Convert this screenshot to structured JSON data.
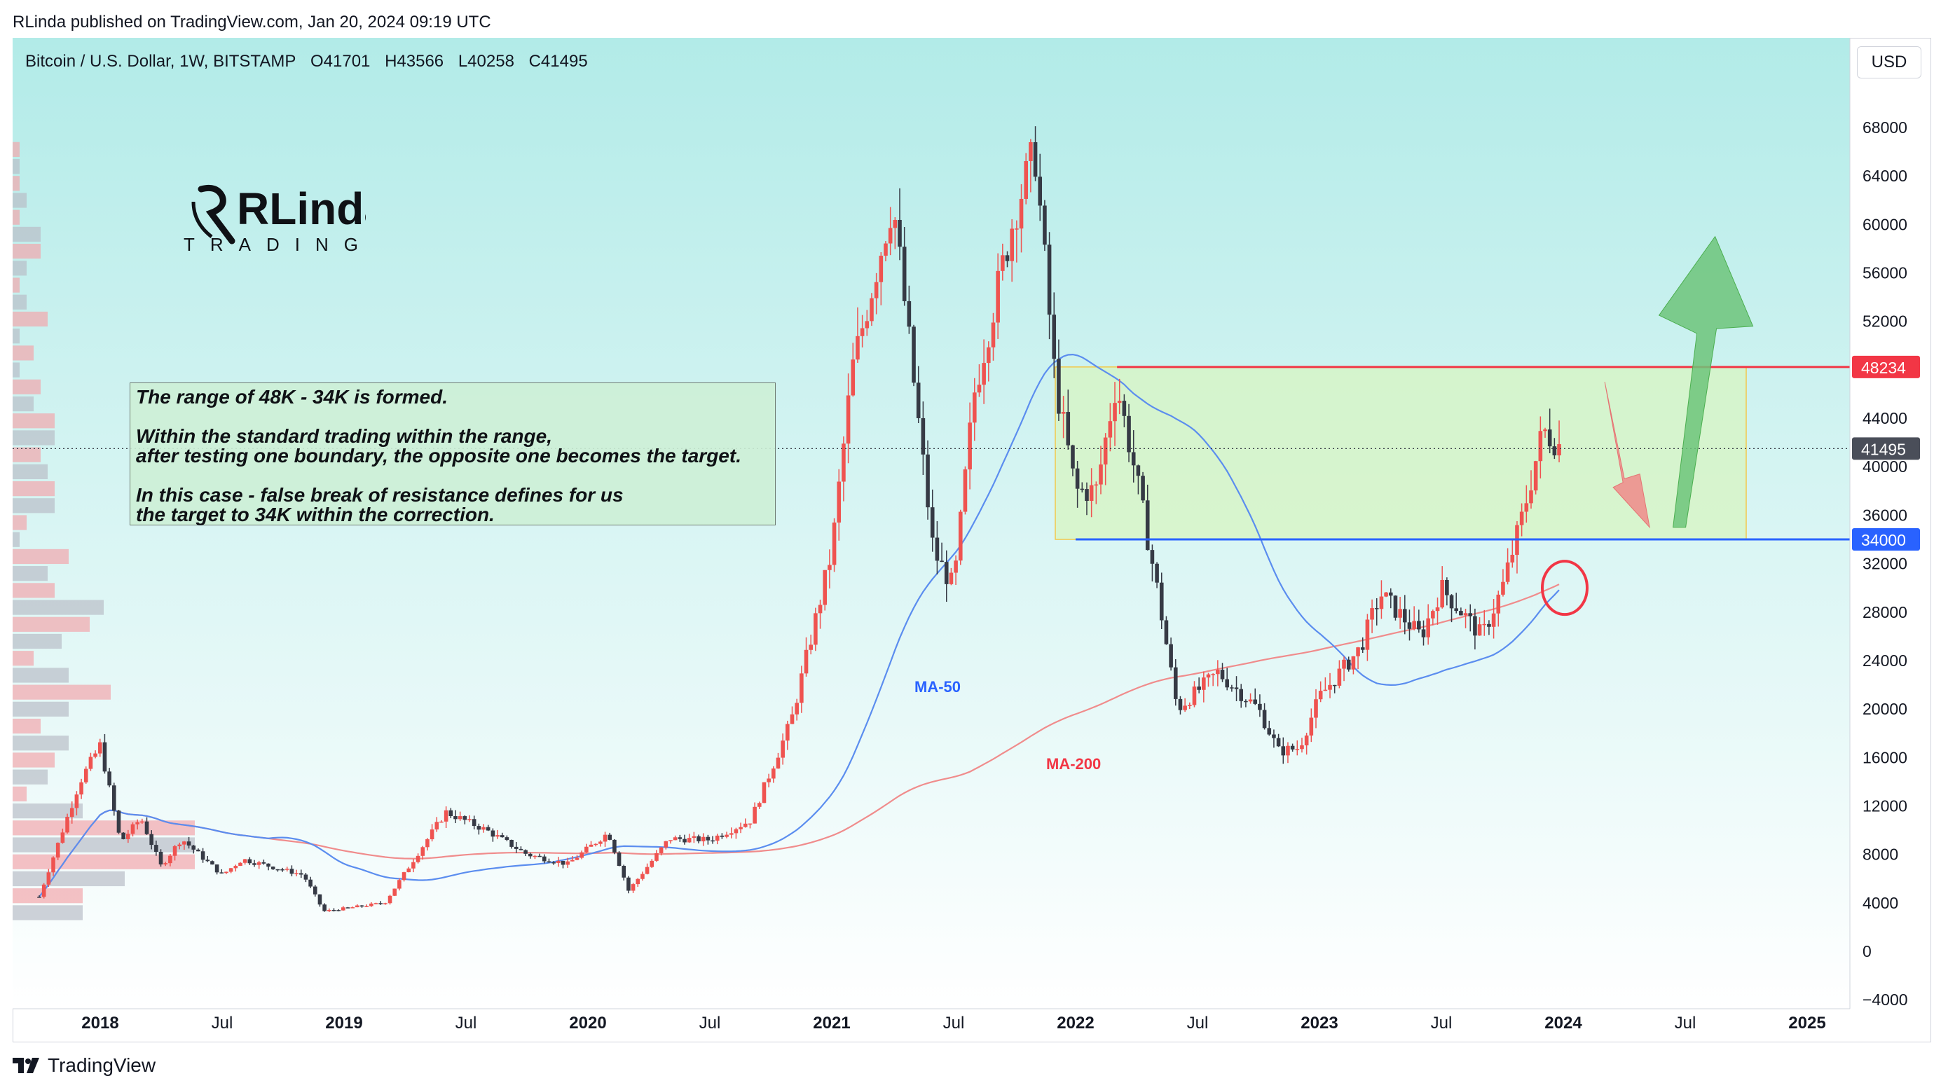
{
  "header": {
    "published_by": "RLinda published on TradingView.com, Jan 20, 2024 09:19 UTC"
  },
  "legend": {
    "symbol": "Bitcoin / U.S. Dollar, 1W, BITSTAMP",
    "open": "O41701",
    "high": "H43566",
    "low": "L40258",
    "close": "C41495"
  },
  "currency_button": "USD",
  "watermark": {
    "text_main": "RLinda",
    "text_sub": "TRADING"
  },
  "note": {
    "line1": "The range of 48K - 34K is formed.",
    "line2": "Within the standard trading within the range,",
    "line3": "after testing one boundary, the opposite one becomes the target.",
    "line4": "In this case - false break of resistance defines for us",
    "line5": "the target to 34K within the correction."
  },
  "footer": {
    "brand": "TradingView"
  },
  "colors": {
    "up": "#ef5350",
    "down": "#363a45",
    "ma50": "#5b8def",
    "ma200": "#f08c8c",
    "resistance": "#f23645",
    "support": "#2962ff",
    "range_fill": "#d7f4c2",
    "bg_top": "#b2ebe8"
  },
  "chart_data": {
    "type": "candlestick",
    "title": "Bitcoin / U.S. Dollar, 1W, BITSTAMP",
    "ylim": [
      -4000,
      72000
    ],
    "y_ticks": [
      -4000,
      0,
      4000,
      8000,
      12000,
      16000,
      20000,
      24000,
      28000,
      32000,
      36000,
      40000,
      44000,
      48000,
      52000,
      56000,
      60000,
      64000,
      68000
    ],
    "x_ticks": [
      "2018",
      "Jul",
      "2019",
      "Jul",
      "2020",
      "Jul",
      "2021",
      "Jul",
      "2022",
      "Jul",
      "2023",
      "Jul",
      "2024",
      "Jul",
      "2025"
    ],
    "anchors": [
      {
        "date": "2017-10",
        "price": 4500
      },
      {
        "date": "2017-12",
        "price": 14000
      },
      {
        "date": "2018-01",
        "price": 17000
      },
      {
        "date": "2018-02",
        "price": 9000
      },
      {
        "date": "2018-03",
        "price": 11000
      },
      {
        "date": "2018-04",
        "price": 7000
      },
      {
        "date": "2018-05",
        "price": 9300
      },
      {
        "date": "2018-07",
        "price": 6300
      },
      {
        "date": "2018-08",
        "price": 7600
      },
      {
        "date": "2018-11",
        "price": 6300
      },
      {
        "date": "2018-12",
        "price": 3300
      },
      {
        "date": "2019-03",
        "price": 4000
      },
      {
        "date": "2019-06",
        "price": 11500
      },
      {
        "date": "2019-08",
        "price": 10000
      },
      {
        "date": "2019-10",
        "price": 8000
      },
      {
        "date": "2019-12",
        "price": 7200
      },
      {
        "date": "2020-02",
        "price": 9800
      },
      {
        "date": "2020-03",
        "price": 5000
      },
      {
        "date": "2020-05",
        "price": 9300
      },
      {
        "date": "2020-07",
        "price": 9200
      },
      {
        "date": "2020-09",
        "price": 10800
      },
      {
        "date": "2020-11",
        "price": 19000
      },
      {
        "date": "2021-01",
        "price": 33000
      },
      {
        "date": "2021-02",
        "price": 48000
      },
      {
        "date": "2021-04",
        "price": 62000
      },
      {
        "date": "2021-06",
        "price": 33000
      },
      {
        "date": "2021-07",
        "price": 30000
      },
      {
        "date": "2021-08",
        "price": 46000
      },
      {
        "date": "2021-10",
        "price": 61000
      },
      {
        "date": "2021-11",
        "price": 66000
      },
      {
        "date": "2021-12",
        "price": 47000
      },
      {
        "date": "2022-01",
        "price": 38000
      },
      {
        "date": "2022-02",
        "price": 38000
      },
      {
        "date": "2022-03",
        "price": 47000
      },
      {
        "date": "2022-04",
        "price": 39000
      },
      {
        "date": "2022-05",
        "price": 30000
      },
      {
        "date": "2022-06",
        "price": 20000
      },
      {
        "date": "2022-08",
        "price": 23000
      },
      {
        "date": "2022-10",
        "price": 20000
      },
      {
        "date": "2022-11",
        "price": 16500
      },
      {
        "date": "2022-12",
        "price": 16800
      },
      {
        "date": "2023-01",
        "price": 21000
      },
      {
        "date": "2023-03",
        "price": 25000
      },
      {
        "date": "2023-04",
        "price": 29500
      },
      {
        "date": "2023-06",
        "price": 26000
      },
      {
        "date": "2023-07",
        "price": 30000
      },
      {
        "date": "2023-09",
        "price": 26000
      },
      {
        "date": "2023-10",
        "price": 30000
      },
      {
        "date": "2023-11",
        "price": 36000
      },
      {
        "date": "2023-12",
        "price": 43000
      },
      {
        "date": "2024-01",
        "price": 41495
      }
    ],
    "moving_averages": [
      {
        "name": "MA-50",
        "color": "#5b8def"
      },
      {
        "name": "MA-200",
        "color": "#f08c8c"
      }
    ],
    "levels": [
      {
        "name": "resistance",
        "price": 48234,
        "label": "48234"
      },
      {
        "name": "support",
        "price": 34000,
        "label": "34000"
      },
      {
        "name": "last-price",
        "price": 41495,
        "label": "41495"
      }
    ],
    "range_box": {
      "from": "2021-12",
      "to": "2024-10",
      "top": 48234,
      "bottom": 34000
    },
    "annotations": [
      {
        "type": "arrow-down",
        "from_price": 47000,
        "to_price": 35000,
        "color": "red"
      },
      {
        "type": "arrow-up",
        "from_price": 35000,
        "to_price": 59000,
        "color": "green"
      },
      {
        "type": "circle",
        "price": 30000,
        "color": "red"
      }
    ],
    "ma_labels": {
      "ma50": "MA-50",
      "ma200": "MA-200"
    }
  }
}
